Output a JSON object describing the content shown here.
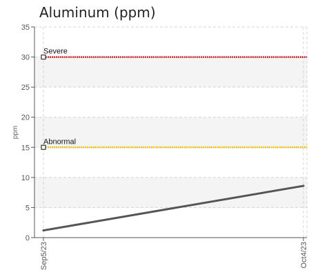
{
  "chart_data": {
    "type": "line",
    "title": "Aluminum (ppm)",
    "ylabel": "ppm",
    "xlabel": "",
    "ylim": [
      0,
      35
    ],
    "y_ticks": [
      0,
      5,
      10,
      15,
      20,
      25,
      30,
      35
    ],
    "categories": [
      "Sep5/23",
      "Oct4/23"
    ],
    "series": [
      {
        "values": [
          1.2,
          8.6
        ],
        "color": "#555555"
      }
    ],
    "thresholds": [
      {
        "name": "Severe",
        "value": 30,
        "color": "#e3262b"
      },
      {
        "name": "Abnormal",
        "value": 15,
        "color": "#f0c419"
      }
    ],
    "bands": [
      {
        "from": 5,
        "to": 10
      },
      {
        "from": 15,
        "to": 20
      },
      {
        "from": 25,
        "to": 30
      }
    ],
    "grid": true
  }
}
